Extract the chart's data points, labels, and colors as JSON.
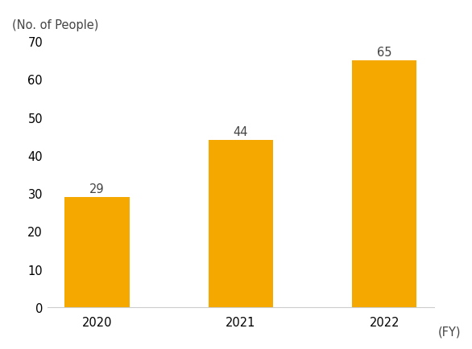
{
  "categories": [
    "2020",
    "2021",
    "2022"
  ],
  "values": [
    29,
    44,
    65
  ],
  "bar_color": "#F5A800",
  "ylabel": "(No. of People)",
  "xlabel": "(FY)",
  "ylim": [
    0,
    70
  ],
  "yticks": [
    0,
    10,
    20,
    30,
    40,
    50,
    60,
    70
  ],
  "bar_width": 0.45,
  "background_color": "#ffffff",
  "label_fontsize": 10.5,
  "axis_fontsize": 10.5,
  "annotation_fontsize": 10.5
}
